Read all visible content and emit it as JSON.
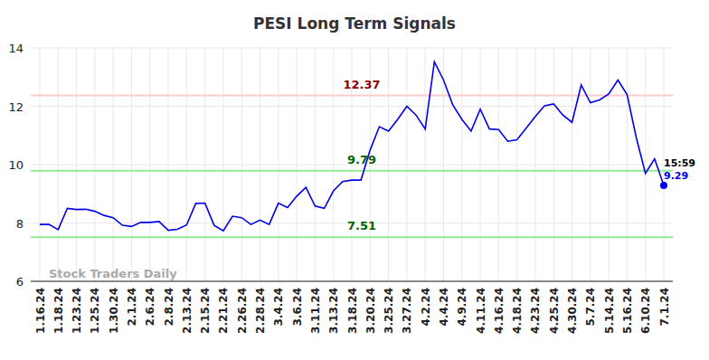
{
  "chart_data": {
    "type": "line",
    "title": "PESI Long Term Signals",
    "watermark": "Stock Traders Daily",
    "last_time": "15:59",
    "categories": [
      "1.16.24",
      null,
      "1.18.24",
      null,
      "1.23.24",
      null,
      "1.25.24",
      null,
      "1.30.24",
      null,
      "2.1.24",
      null,
      "2.6.24",
      null,
      "2.8.24",
      null,
      "2.13.24",
      null,
      "2.15.24",
      null,
      "2.21.24",
      null,
      "2.26.24",
      null,
      "2.28.24",
      null,
      "3.4.24",
      null,
      "3.6.24",
      null,
      "3.11.24",
      null,
      "3.13.24",
      null,
      "3.18.24",
      null,
      "3.20.24",
      null,
      "3.25.24",
      null,
      "3.27.24",
      null,
      "4.2.24",
      null,
      "4.4.24",
      null,
      "4.9.24",
      null,
      "4.11.24",
      null,
      "4.16.24",
      null,
      "4.18.24",
      null,
      "4.23.24",
      null,
      "4.25.24",
      null,
      "4.30.24",
      null,
      "5.7.24",
      null,
      "5.14.24",
      null,
      "5.16.24",
      null,
      "6.10.24",
      null,
      "7.1.24"
    ],
    "series": [
      {
        "name": "PESI",
        "color": "#0000ee",
        "values": [
          7.95,
          7.95,
          7.77,
          8.5,
          8.46,
          8.47,
          8.4,
          8.26,
          8.18,
          7.92,
          7.88,
          8.02,
          8.02,
          8.05,
          7.75,
          7.78,
          7.93,
          8.67,
          8.68,
          7.92,
          7.73,
          8.23,
          8.18,
          7.95,
          8.1,
          7.95,
          8.68,
          8.53,
          8.92,
          9.22,
          8.58,
          8.5,
          9.1,
          9.42,
          9.47,
          9.47,
          10.5,
          11.3,
          11.15,
          11.55,
          12.0,
          11.7,
          11.22,
          13.52,
          12.9,
          12.05,
          11.55,
          11.15,
          11.9,
          11.22,
          11.2,
          10.8,
          10.85,
          11.25,
          11.65,
          12.02,
          12.08,
          11.7,
          11.45,
          12.73,
          12.12,
          12.22,
          12.42,
          12.9,
          12.4,
          10.93,
          9.7,
          10.2,
          9.29
        ]
      }
    ],
    "signals": [
      {
        "value": 12.37,
        "color": "#ffcccc",
        "label_color": "#8b0000"
      },
      {
        "value": 9.79,
        "color": "#90ee90",
        "label_color": "#006400"
      },
      {
        "value": 7.51,
        "color": "#90ee90",
        "label_color": "#006400"
      }
    ],
    "ylim": [
      6,
      14
    ],
    "yticks": [
      6,
      8,
      10,
      12,
      14
    ],
    "grid": true
  }
}
